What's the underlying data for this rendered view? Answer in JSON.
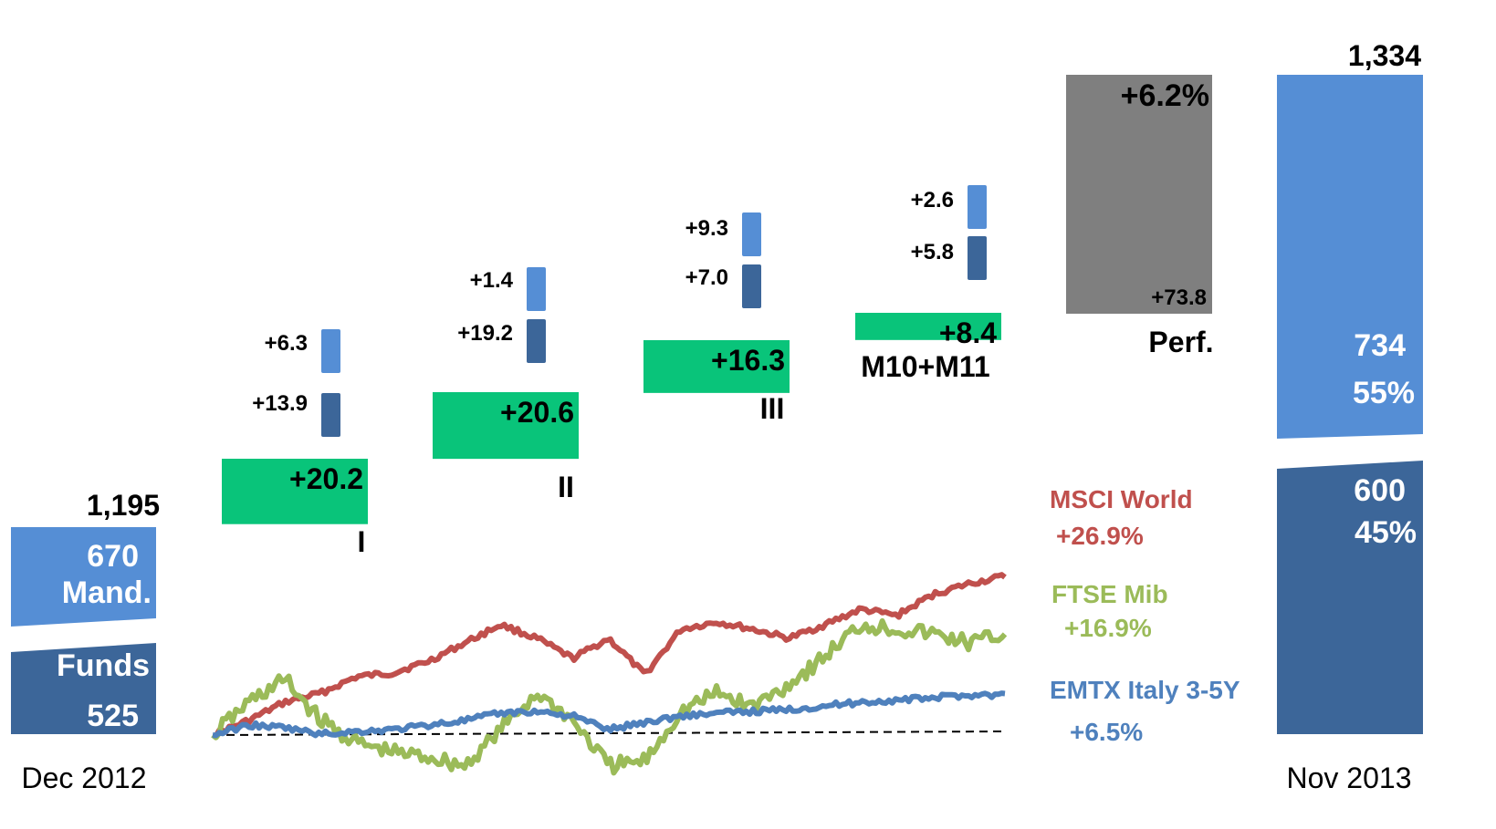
{
  "chart_data": {
    "type": "bar",
    "start": {
      "label": "Dec 2012",
      "total": "1,195",
      "mandates": {
        "value": "670",
        "label": "Mand."
      },
      "funds": {
        "value": "525",
        "label": "Funds"
      }
    },
    "end": {
      "label": "Nov 2013",
      "total": "1,334",
      "mandates": {
        "value": "734",
        "pct": "55%"
      },
      "funds": {
        "value": "600",
        "pct": "45%"
      }
    },
    "steps": [
      {
        "label": "I",
        "net_flow": 20.2,
        "net_flow_label": "+20.2",
        "funds": 13.9,
        "funds_label": "+13.9",
        "mandates": 6.3,
        "mandates_label": "+6.3"
      },
      {
        "label": "II",
        "net_flow": 20.6,
        "net_flow_label": "+20.6",
        "funds": 19.2,
        "funds_label": "+19.2",
        "mandates": 1.4,
        "mandates_label": "+1.4"
      },
      {
        "label": "III",
        "net_flow": 16.3,
        "net_flow_label": "+16.3",
        "funds": 7.0,
        "funds_label": "+7.0",
        "mandates": 9.3,
        "mandates_label": "+9.3"
      },
      {
        "label": "M10+M11",
        "net_flow": 8.4,
        "net_flow_label": "+8.4",
        "funds": 5.8,
        "funds_label": "+5.8",
        "mandates": 2.6,
        "mandates_label": "+2.6"
      }
    ],
    "performance": {
      "label": "Perf.",
      "pct": "+6.2%",
      "value": 73.8,
      "value_label": "+73.8"
    },
    "index_lines": [
      {
        "name": "MSCI World",
        "change": "+26.9%",
        "color": "#c0504d"
      },
      {
        "name": "FTSE Mib",
        "change": "+16.9%",
        "color": "#9bbb59"
      },
      {
        "name": "EMTX Italy 3-5Y",
        "change": "+6.5%",
        "color": "#4f81bd"
      }
    ],
    "colors": {
      "mandates": "#558ed5",
      "funds": "#3c6699",
      "net_flow": "#09c47a",
      "performance": "#7f7f7f"
    }
  }
}
